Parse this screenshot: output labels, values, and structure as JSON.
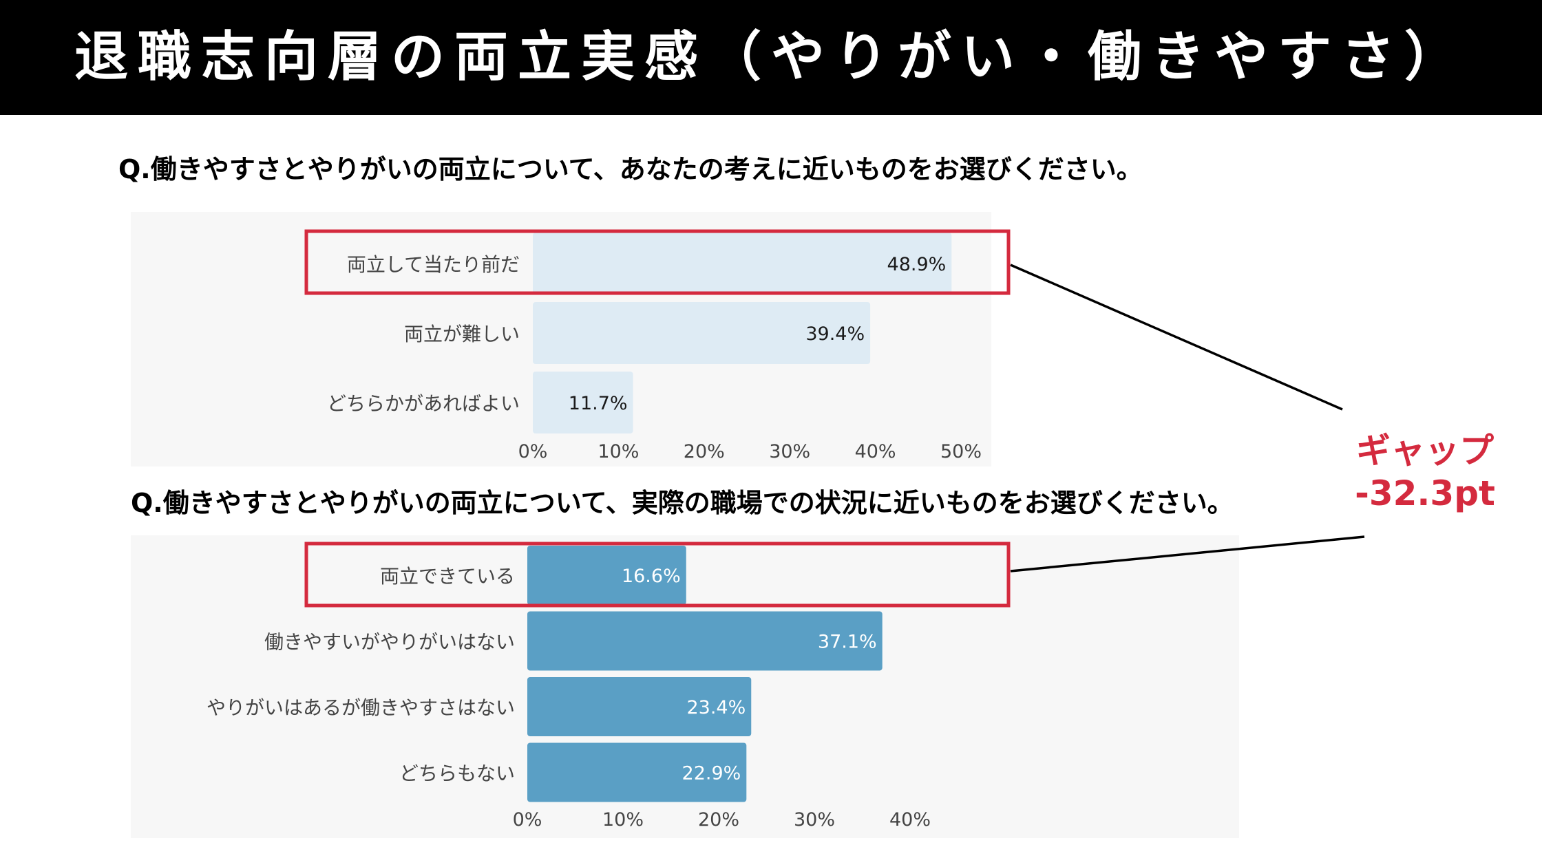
{
  "header": {
    "title": "退職志向層の両立実感（やりがい・働きやすさ）"
  },
  "questions": {
    "q1": "Q.働きやすさとやりがいの両立について、あなたの考えに近いものをお選びください。",
    "q2": "Q.働きやすさとやりがいの両立について、実際の職場での状況に近いものをお選びください。"
  },
  "gap": {
    "label": "ギャップ",
    "value": "-32.3pt"
  },
  "colors": {
    "bar_light": "#deebf4",
    "bar_dark": "#5a9fc5",
    "highlight": "#d42a3e",
    "text": "#444444"
  },
  "chart_data": [
    {
      "type": "bar",
      "orientation": "horizontal",
      "categories": [
        "両立して当たり前だ",
        "両立が難しい",
        "どちらかがあればよい"
      ],
      "values": [
        48.9,
        39.4,
        11.7
      ],
      "value_labels": [
        "48.9%",
        "39.4%",
        "11.7%"
      ],
      "ticks": [
        "0%",
        "10%",
        "20%",
        "30%",
        "40%",
        "50%"
      ],
      "xlim": [
        0,
        50
      ],
      "highlighted_index": 0,
      "title": "",
      "xlabel": "",
      "ylabel": ""
    },
    {
      "type": "bar",
      "orientation": "horizontal",
      "categories": [
        "両立できている",
        "働きやすいがやりがいはない",
        "やりがいはあるが働きやすさはない",
        "どちらもない"
      ],
      "values": [
        16.6,
        37.1,
        23.4,
        22.9
      ],
      "value_labels": [
        "16.6%",
        "37.1%",
        "23.4%",
        "22.9%"
      ],
      "ticks": [
        "0%",
        "10%",
        "20%",
        "30%",
        "40%"
      ],
      "xlim": [
        0,
        40
      ],
      "highlighted_index": 0,
      "title": "",
      "xlabel": "",
      "ylabel": ""
    }
  ]
}
